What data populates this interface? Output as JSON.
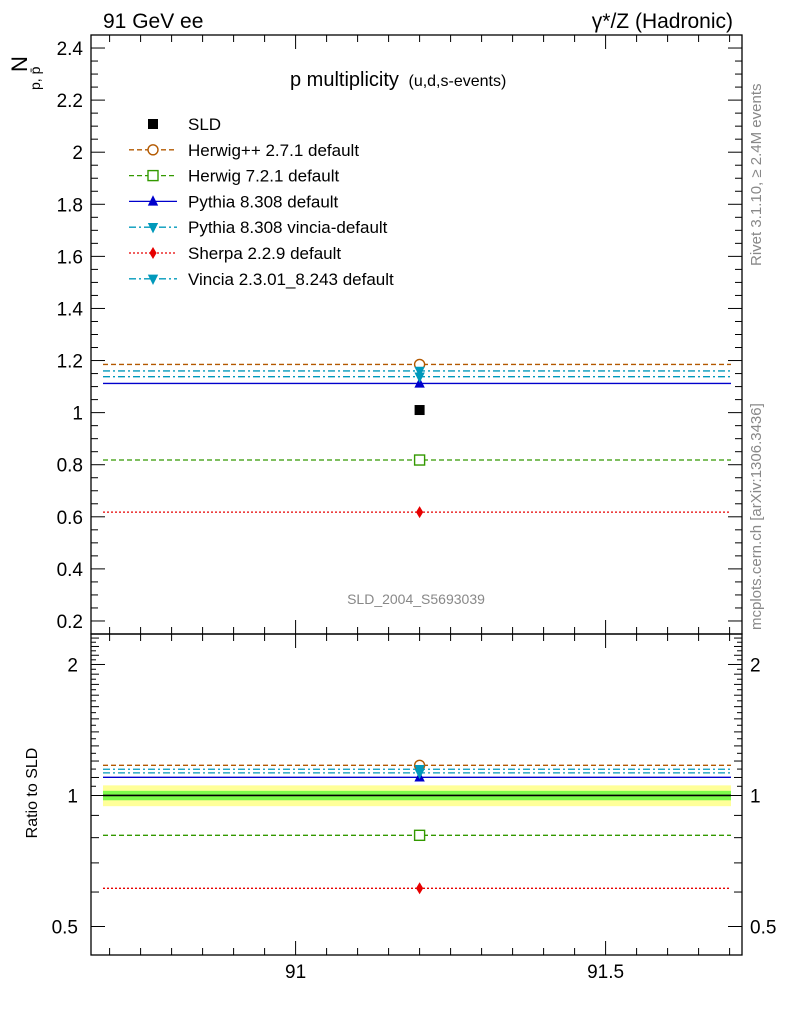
{
  "header": {
    "left": "91 GeV ee",
    "right": "γ*/Z (Hadronic)"
  },
  "side_texts": {
    "rivet": "Rivet 3.1.10, ≥ 2.4M events",
    "mcplots": "mcplots.cern.ch [arXiv:1306.3436]"
  },
  "watermark": "SLD_2004_S5693039",
  "colors": {
    "sld": "#000000",
    "herwigpp": "#b35900",
    "herwig7": "#339900",
    "pythia": "#0000cc",
    "pythia_vincia": "#0099bb",
    "sherpa": "#e60000",
    "vincia": "#0099bb",
    "band_inner": "#7cfc4c",
    "band_outer": "#ffff99"
  },
  "chart_data": [
    {
      "type": "scatter",
      "title_main": "p multiplicity",
      "title_sub": "(u,d,s-events)",
      "ylabel_main": "N",
      "ylabel_sub": "p, p̄",
      "ylim": [
        0.15,
        2.45
      ],
      "yticks": [
        0.2,
        0.4,
        0.6,
        0.8,
        1,
        1.2,
        1.4,
        1.6,
        1.8,
        2,
        2.2,
        2.4
      ],
      "ytick_labels": [
        "0.2",
        "0.4",
        "0.6",
        "0.8",
        "1",
        "1.2",
        "1.4",
        "1.6",
        "1.8",
        "2",
        "2.2",
        "2.4"
      ],
      "xlim": [
        90.67,
        91.72
      ],
      "legend_position": "top-left",
      "series": [
        {
          "name": "SLD",
          "x": 91.2,
          "y": 1.01,
          "style": "data",
          "marker": "square-filled",
          "color": "#000000"
        },
        {
          "name": "Herwig++ 2.7.1 default",
          "x": 91.2,
          "y": 1.185,
          "style": "dashed",
          "marker": "circle-open",
          "color": "#b35900"
        },
        {
          "name": "Herwig 7.2.1 default",
          "x": 91.2,
          "y": 0.818,
          "style": "dashed",
          "marker": "square-open",
          "color": "#339900"
        },
        {
          "name": "Pythia 8.308 default",
          "x": 91.2,
          "y": 1.112,
          "style": "solid",
          "marker": "triangle-up",
          "color": "#0000cc"
        },
        {
          "name": "Pythia 8.308 vincia-default",
          "x": 91.2,
          "y": 1.16,
          "style": "dashdot",
          "marker": "triangle-down",
          "color": "#0099bb"
        },
        {
          "name": "Sherpa 2.2.9 default",
          "x": 91.2,
          "y": 0.618,
          "style": "dotted",
          "marker": "diamond",
          "color": "#e60000"
        },
        {
          "name": "Vincia 2.3.01_8.243 default",
          "x": 91.2,
          "y": 1.138,
          "style": "dashdot",
          "marker": "triangle-down",
          "color": "#0099bb"
        }
      ]
    },
    {
      "type": "scatter",
      "ylabel": "Ratio to SLD",
      "ylim": [
        0.43,
        2.35
      ],
      "yticks": [
        0.5,
        1,
        2
      ],
      "ytick_labels": [
        "0.5",
        "1",
        "2"
      ],
      "xlim": [
        90.67,
        91.72
      ],
      "xticks": [
        91,
        91.5
      ],
      "xtick_labels": [
        "91",
        "91.5"
      ],
      "band_inner": [
        0.975,
        1.025
      ],
      "band_outer": [
        0.945,
        1.055
      ],
      "series": [
        {
          "name": "SLD",
          "x": 91.2,
          "y": 1.0,
          "color": "#000000",
          "style": "solid"
        },
        {
          "name": "Herwig++ 2.7.1 default",
          "x": 91.2,
          "y": 1.173,
          "style": "dashed",
          "marker": "circle-open",
          "color": "#b35900"
        },
        {
          "name": "Herwig 7.2.1 default",
          "x": 91.2,
          "y": 0.81,
          "style": "dashed",
          "marker": "square-open",
          "color": "#339900"
        },
        {
          "name": "Pythia 8.308 default",
          "x": 91.2,
          "y": 1.101,
          "style": "solid",
          "marker": "triangle-up",
          "color": "#0000cc"
        },
        {
          "name": "Pythia 8.308 vincia-default",
          "x": 91.2,
          "y": 1.149,
          "style": "dashdot",
          "marker": "triangle-down",
          "color": "#0099bb"
        },
        {
          "name": "Sherpa 2.2.9 default",
          "x": 91.2,
          "y": 0.612,
          "style": "dotted",
          "marker": "diamond",
          "color": "#e60000"
        },
        {
          "name": "Vincia 2.3.01_8.243 default",
          "x": 91.2,
          "y": 1.127,
          "style": "dashdot",
          "marker": "triangle-down",
          "color": "#0099bb"
        }
      ]
    }
  ]
}
